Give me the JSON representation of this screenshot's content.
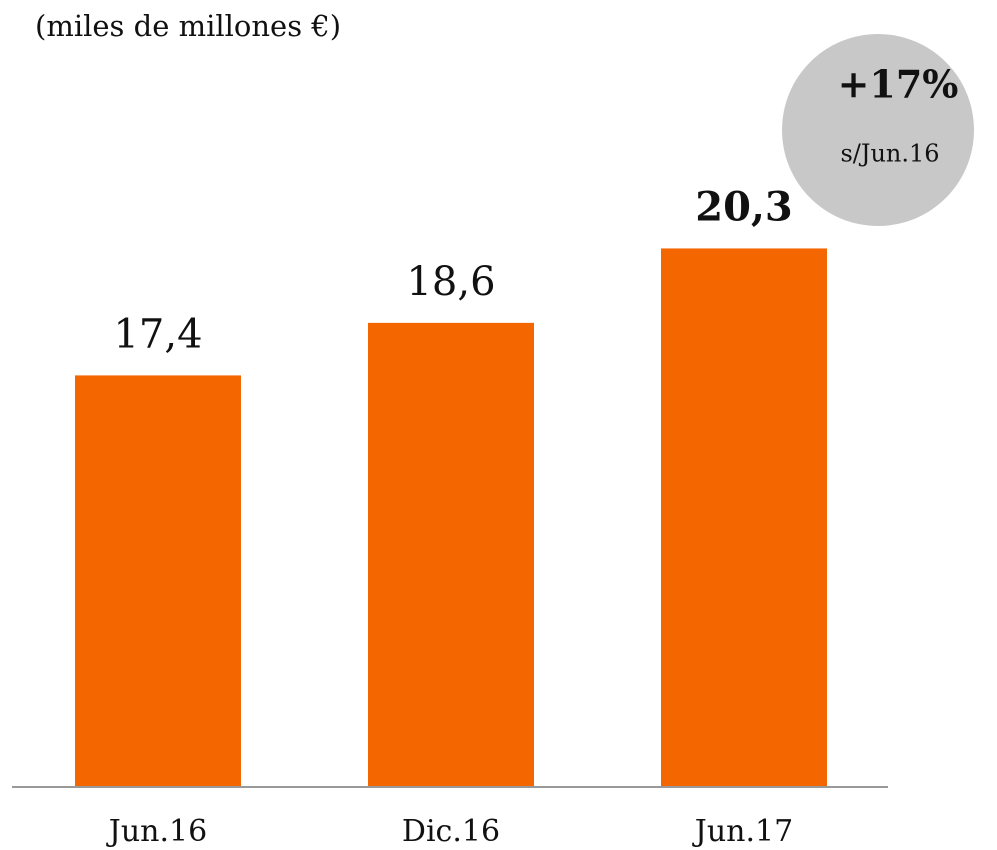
{
  "chart_data": {
    "type": "bar",
    "subtitle": "(miles de millones €)",
    "categories": [
      "Jun.16",
      "Dic.16",
      "Jun.17"
    ],
    "values": [
      17.4,
      18.6,
      20.3
    ],
    "value_labels": [
      "17,4",
      "18,6",
      "20,3"
    ],
    "color": "#f46600",
    "ylim": [
      8,
      22
    ],
    "annotations": [
      "+17%",
      "s/Jun.16"
    ]
  }
}
